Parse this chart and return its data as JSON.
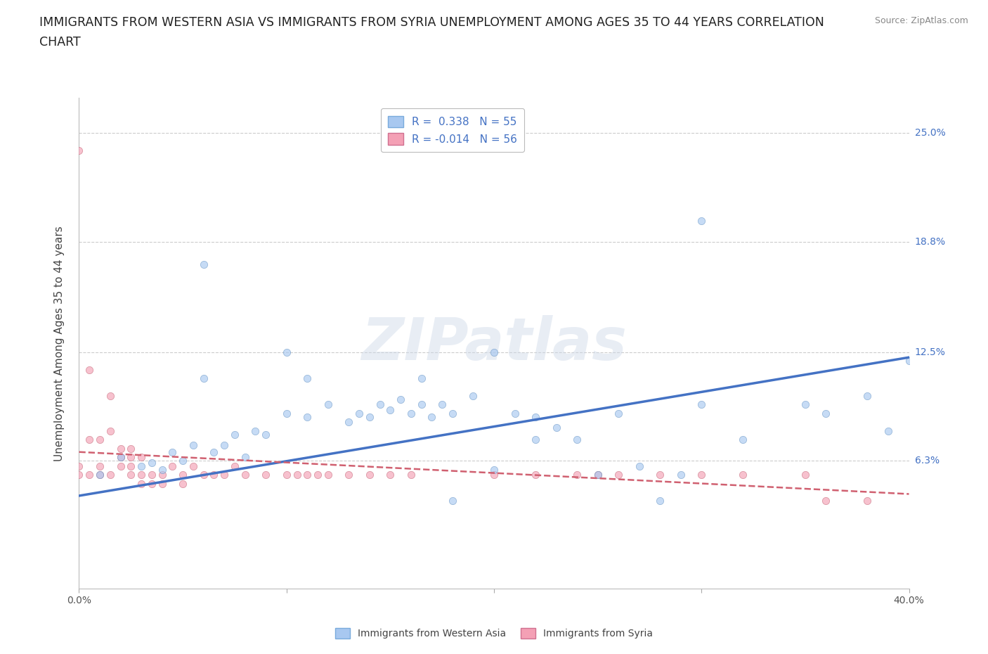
{
  "title_line1": "IMMIGRANTS FROM WESTERN ASIA VS IMMIGRANTS FROM SYRIA UNEMPLOYMENT AMONG AGES 35 TO 44 YEARS CORRELATION",
  "title_line2": "CHART",
  "source": "Source: ZipAtlas.com",
  "ylabel": "Unemployment Among Ages 35 to 44 years",
  "watermark": "ZIPatlas",
  "xlim": [
    0.0,
    0.4
  ],
  "ylim": [
    -0.01,
    0.27
  ],
  "ytick_labels": [
    "6.3%",
    "12.5%",
    "18.8%",
    "25.0%"
  ],
  "ytick_vals": [
    0.063,
    0.125,
    0.188,
    0.25
  ],
  "R_blue": 0.338,
  "N_blue": 55,
  "R_pink": -0.014,
  "N_pink": 56,
  "blue_color": "#a8c8f0",
  "pink_color": "#f4a0b5",
  "blue_line_color": "#4472c4",
  "pink_line_color": "#d06070",
  "legend_label_blue": "Immigrants from Western Asia",
  "legend_label_pink": "Immigrants from Syria",
  "blue_scatter_x": [
    0.01,
    0.02,
    0.03,
    0.035,
    0.04,
    0.045,
    0.05,
    0.055,
    0.06,
    0.065,
    0.07,
    0.075,
    0.08,
    0.085,
    0.09,
    0.1,
    0.1,
    0.11,
    0.12,
    0.13,
    0.135,
    0.14,
    0.145,
    0.15,
    0.155,
    0.16,
    0.165,
    0.17,
    0.175,
    0.18,
    0.19,
    0.2,
    0.21,
    0.22,
    0.23,
    0.24,
    0.25,
    0.26,
    0.27,
    0.29,
    0.3,
    0.32,
    0.35,
    0.36,
    0.38,
    0.39,
    0.4,
    0.165,
    0.11,
    0.2,
    0.06,
    0.22,
    0.28,
    0.3,
    0.18
  ],
  "blue_scatter_y": [
    0.055,
    0.065,
    0.06,
    0.062,
    0.058,
    0.068,
    0.063,
    0.072,
    0.175,
    0.068,
    0.072,
    0.078,
    0.065,
    0.08,
    0.078,
    0.125,
    0.09,
    0.088,
    0.095,
    0.085,
    0.09,
    0.088,
    0.095,
    0.092,
    0.098,
    0.09,
    0.095,
    0.088,
    0.095,
    0.09,
    0.1,
    0.125,
    0.09,
    0.088,
    0.082,
    0.075,
    0.055,
    0.09,
    0.06,
    0.055,
    0.2,
    0.075,
    0.095,
    0.09,
    0.1,
    0.08,
    0.12,
    0.11,
    0.11,
    0.058,
    0.11,
    0.075,
    0.04,
    0.095,
    0.04
  ],
  "pink_scatter_x": [
    0.0,
    0.0,
    0.0,
    0.005,
    0.005,
    0.01,
    0.01,
    0.015,
    0.015,
    0.02,
    0.02,
    0.025,
    0.025,
    0.025,
    0.03,
    0.03,
    0.035,
    0.035,
    0.04,
    0.04,
    0.045,
    0.05,
    0.05,
    0.055,
    0.06,
    0.065,
    0.07,
    0.075,
    0.08,
    0.09,
    0.1,
    0.105,
    0.11,
    0.115,
    0.12,
    0.13,
    0.14,
    0.15,
    0.16,
    0.2,
    0.22,
    0.24,
    0.25,
    0.26,
    0.28,
    0.3,
    0.32,
    0.35,
    0.36,
    0.38,
    0.005,
    0.01,
    0.015,
    0.02,
    0.025,
    0.03
  ],
  "pink_scatter_y": [
    0.055,
    0.06,
    0.24,
    0.055,
    0.115,
    0.055,
    0.06,
    0.055,
    0.1,
    0.06,
    0.065,
    0.055,
    0.06,
    0.065,
    0.05,
    0.055,
    0.05,
    0.055,
    0.05,
    0.055,
    0.06,
    0.05,
    0.055,
    0.06,
    0.055,
    0.055,
    0.055,
    0.06,
    0.055,
    0.055,
    0.055,
    0.055,
    0.055,
    0.055,
    0.055,
    0.055,
    0.055,
    0.055,
    0.055,
    0.055,
    0.055,
    0.055,
    0.055,
    0.055,
    0.055,
    0.055,
    0.055,
    0.055,
    0.04,
    0.04,
    0.075,
    0.075,
    0.08,
    0.07,
    0.07,
    0.065
  ],
  "blue_trend_x": [
    0.0,
    0.4
  ],
  "blue_trend_y": [
    0.043,
    0.122
  ],
  "pink_trend_x": [
    0.0,
    0.4
  ],
  "pink_trend_y": [
    0.068,
    0.044
  ],
  "grid_color": "#cccccc",
  "background_color": "#ffffff",
  "title_fontsize": 12.5,
  "axis_fontsize": 11,
  "tick_fontsize": 10,
  "legend_fontsize": 11,
  "scatter_size": 55,
  "scatter_alpha": 0.65
}
